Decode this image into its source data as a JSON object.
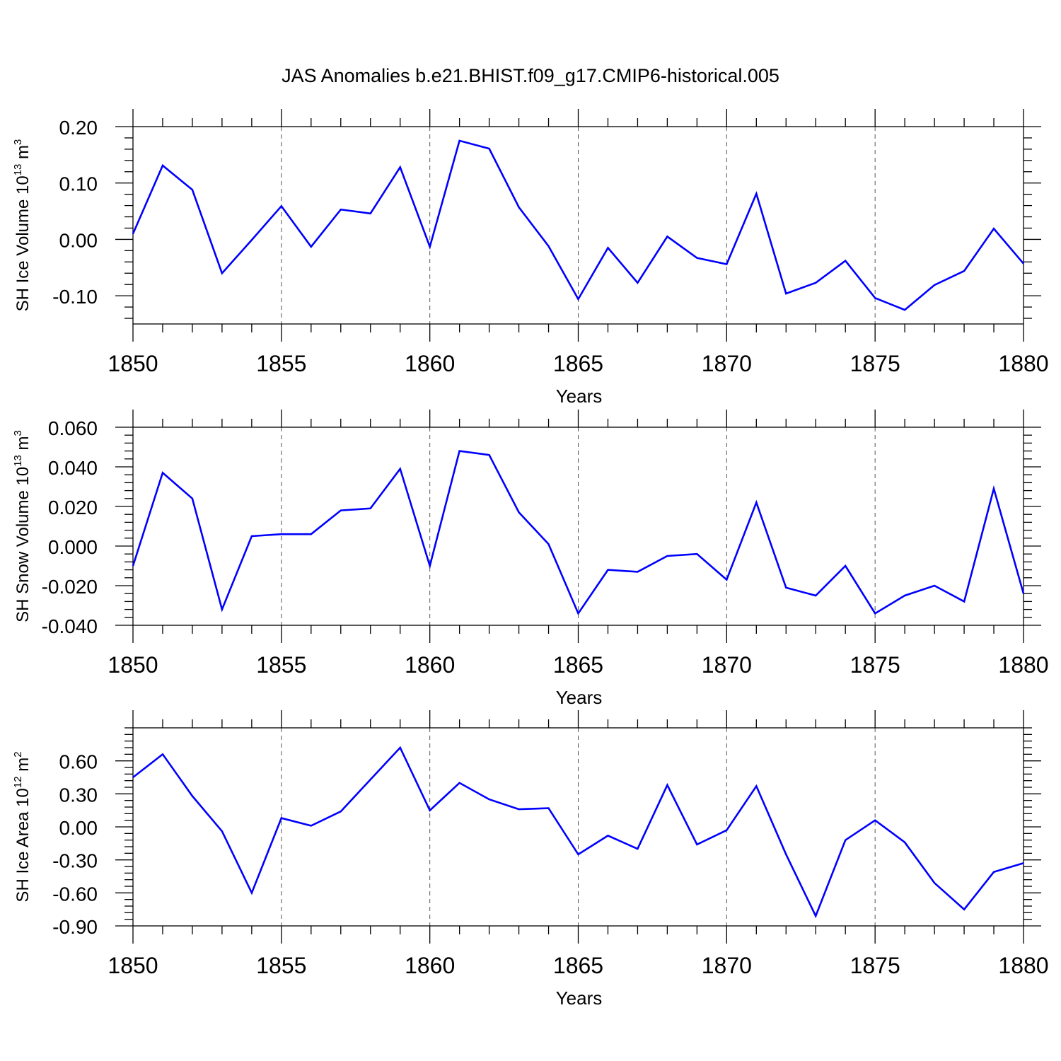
{
  "figure": {
    "title": "JAS Anomalies b.e21.BHIST.f09_g17.CMIP6-historical.005"
  },
  "colors": {
    "series": "#0000ff"
  },
  "chart_data": [
    {
      "type": "line",
      "ylabel_main": "SH Ice Volume 10",
      "ylabel_exp": "13",
      "ylabel_unit": " m",
      "ylabel_unit_exp": "3",
      "xlabel": "Years",
      "xlim": [
        1850,
        1880
      ],
      "ylim": [
        -0.15,
        0.2
      ],
      "yticks": [
        -0.1,
        0.0,
        0.1,
        0.2
      ],
      "ytick_labels": [
        "-0.10",
        "0.00",
        "0.10",
        "0.20"
      ],
      "xticks": [
        1850,
        1855,
        1860,
        1865,
        1870,
        1875,
        1880
      ],
      "grid": "dashed vertical at 1855, 1860, 1865, 1870, 1875",
      "x": [
        1850,
        1851,
        1852,
        1853,
        1854,
        1855,
        1856,
        1857,
        1858,
        1859,
        1860,
        1861,
        1862,
        1863,
        1864,
        1865,
        1866,
        1867,
        1868,
        1869,
        1870,
        1871,
        1872,
        1873,
        1874,
        1875,
        1876,
        1877,
        1878,
        1879,
        1880
      ],
      "y": [
        0.01,
        0.131,
        0.088,
        -0.06,
        -0.001,
        0.059,
        -0.013,
        0.053,
        0.046,
        0.128,
        -0.013,
        0.175,
        0.161,
        0.057,
        -0.012,
        -0.106,
        -0.015,
        -0.077,
        0.005,
        -0.033,
        -0.044,
        0.081,
        -0.096,
        -0.077,
        -0.038,
        -0.104,
        -0.125,
        -0.081,
        -0.056,
        0.019,
        -0.043
      ]
    },
    {
      "type": "line",
      "ylabel_main": "SH Snow Volume 10",
      "ylabel_exp": "13",
      "ylabel_unit": " m",
      "ylabel_unit_exp": "3",
      "xlabel": "Years",
      "xlim": [
        1850,
        1880
      ],
      "ylim": [
        -0.04,
        0.06
      ],
      "yticks": [
        -0.04,
        -0.02,
        0.0,
        0.02,
        0.04,
        0.06
      ],
      "ytick_labels": [
        "-0.040",
        "-0.020",
        "0.000",
        "0.020",
        "0.040",
        "0.060"
      ],
      "xticks": [
        1850,
        1855,
        1860,
        1865,
        1870,
        1875,
        1880
      ],
      "grid": "dashed vertical at 1855, 1860, 1865, 1870, 1875",
      "x": [
        1850,
        1851,
        1852,
        1853,
        1854,
        1855,
        1856,
        1857,
        1858,
        1859,
        1860,
        1861,
        1862,
        1863,
        1864,
        1865,
        1866,
        1867,
        1868,
        1869,
        1870,
        1871,
        1872,
        1873,
        1874,
        1875,
        1876,
        1877,
        1878,
        1879,
        1880
      ],
      "y": [
        -0.01,
        0.037,
        0.024,
        -0.032,
        0.005,
        0.006,
        0.006,
        0.018,
        0.019,
        0.039,
        -0.01,
        0.048,
        0.046,
        0.017,
        0.001,
        -0.034,
        -0.012,
        -0.013,
        -0.005,
        -0.004,
        -0.017,
        0.022,
        -0.021,
        -0.025,
        -0.01,
        -0.034,
        -0.025,
        -0.02,
        -0.028,
        0.029,
        -0.024
      ]
    },
    {
      "type": "line",
      "ylabel_main": "SH Ice Area 10",
      "ylabel_exp": "12",
      "ylabel_unit": " m",
      "ylabel_unit_exp": "2",
      "xlabel": "Years",
      "xlim": [
        1850,
        1880
      ],
      "ylim": [
        -0.9,
        0.9
      ],
      "yticks": [
        -0.9,
        -0.6,
        -0.3,
        0.0,
        0.3,
        0.6
      ],
      "ytick_labels": [
        "-0.90",
        "-0.60",
        "-0.30",
        "0.00",
        "0.30",
        "0.60"
      ],
      "xticks": [
        1850,
        1855,
        1860,
        1865,
        1870,
        1875,
        1880
      ],
      "grid": "dashed vertical at 1855, 1860, 1865, 1870, 1875",
      "x": [
        1850,
        1851,
        1852,
        1853,
        1854,
        1855,
        1856,
        1857,
        1858,
        1859,
        1860,
        1861,
        1862,
        1863,
        1864,
        1865,
        1866,
        1867,
        1868,
        1869,
        1870,
        1871,
        1872,
        1873,
        1874,
        1875,
        1876,
        1877,
        1878,
        1879,
        1880
      ],
      "y": [
        0.45,
        0.66,
        0.28,
        -0.04,
        -0.6,
        0.08,
        0.01,
        0.14,
        0.43,
        0.72,
        0.15,
        0.4,
        0.25,
        0.16,
        0.17,
        -0.25,
        -0.08,
        -0.2,
        0.38,
        -0.16,
        -0.03,
        0.37,
        -0.25,
        -0.81,
        -0.12,
        0.06,
        -0.14,
        -0.51,
        -0.75,
        -0.41,
        -0.33
      ]
    }
  ]
}
